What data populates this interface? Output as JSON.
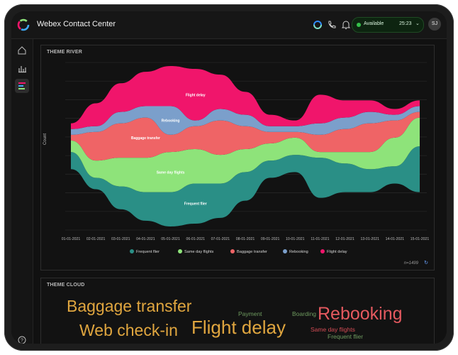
{
  "app": {
    "title": "Webex Contact Center",
    "status": "Available",
    "timer": "25:23",
    "avatar_initials": "SJ"
  },
  "sidebar": {
    "items": [
      {
        "icon": "home-icon"
      },
      {
        "icon": "bar-chart-icon"
      },
      {
        "icon": "analyzer-icon"
      },
      {
        "icon": "help-icon"
      }
    ]
  },
  "theme_river": {
    "title": "THEME RIVER",
    "footnote": "n=1499",
    "chart_data": {
      "type": "area",
      "x": [
        "01-01-2021",
        "02-01-2021",
        "03-01-2021",
        "04-01-2021",
        "05-01-2021",
        "06-01-2021",
        "07-01-2021",
        "08-01-2021",
        "09-01-2021",
        "10-01-2021",
        "11-01-2021",
        "12-01-2021",
        "13-01-2021",
        "14-01-2021",
        "15-01-2021"
      ],
      "ylabel": "Count",
      "grid": true,
      "legend_placement": "bottom",
      "series": [
        {
          "name": "Frequent flier",
          "color": "#2a8f86",
          "values": [
            3,
            2,
            4,
            5,
            6,
            7,
            6,
            5,
            3,
            3,
            7,
            5,
            4,
            3,
            8
          ]
        },
        {
          "name": "Same day flights",
          "color": "#8ee37a",
          "values": [
            2,
            3,
            5,
            6,
            7,
            6,
            5,
            4,
            3,
            3,
            1,
            2,
            3,
            5,
            5
          ]
        },
        {
          "name": "Baggage transfer",
          "color": "#ef6466",
          "values": [
            1,
            5,
            6,
            7,
            3,
            4,
            6,
            4,
            2,
            1,
            3,
            4,
            5,
            3,
            1
          ]
        },
        {
          "name": "Rebooking",
          "color": "#7b9fcb",
          "values": [
            1,
            1,
            2,
            2,
            5,
            1,
            2,
            2,
            1,
            1,
            2,
            2,
            2,
            1,
            1
          ]
        },
        {
          "name": "Flight delay",
          "color": "#f0156b",
          "values": [
            1,
            4,
            5,
            6,
            7,
            9,
            6,
            4,
            2,
            1,
            5,
            3,
            2,
            1,
            1
          ]
        }
      ],
      "labels": [
        {
          "text": "Frequent flier",
          "series": "Frequent flier"
        },
        {
          "text": "Same day flights",
          "series": "Same day flights"
        },
        {
          "text": "Baggage transfer",
          "series": "Baggage transfer"
        },
        {
          "text": "Rebooking",
          "series": "Rebooking"
        },
        {
          "text": "Flight delay",
          "series": "Flight delay"
        }
      ]
    }
  },
  "theme_cloud": {
    "title": "THEME CLOUD",
    "words": [
      {
        "text": "Baggage transfer",
        "color": "#e0a63f"
      },
      {
        "text": "Web check-in",
        "color": "#e0a63f"
      },
      {
        "text": "Flight delay",
        "color": "#e0a63f"
      },
      {
        "text": "Payment",
        "color": "#6e9a5f"
      },
      {
        "text": "Boarding",
        "color": "#6e9a5f"
      },
      {
        "text": "Rebooking",
        "color": "#e4595f"
      },
      {
        "text": "Same day flights",
        "color": "#d44c55"
      },
      {
        "text": "Frequent flier",
        "color": "#6e9a5f"
      }
    ]
  }
}
